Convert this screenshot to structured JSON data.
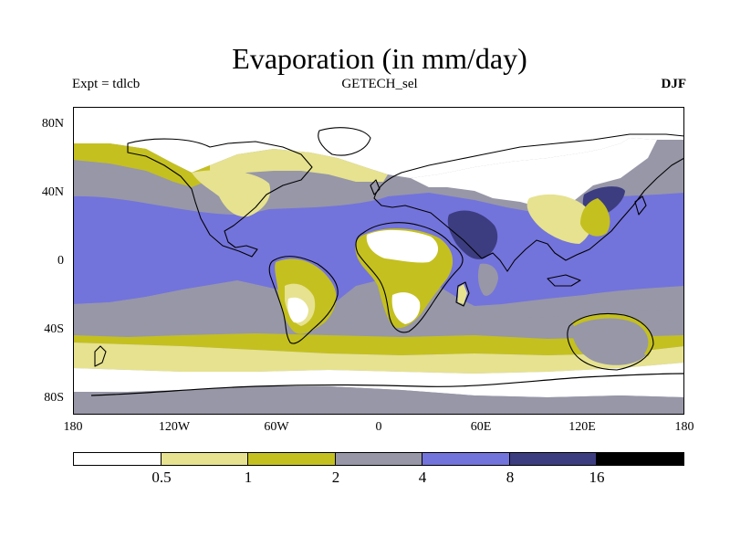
{
  "title": "Evaporation (in mm/day)",
  "left_subtitle": "Expt = tdlcb",
  "center_subtitle": "GETECH_sel",
  "right_subtitle": "DJF",
  "x_ticks": [
    "180",
    "120W",
    "60W",
    "0",
    "60E",
    "120E",
    "180"
  ],
  "y_ticks": [
    "80N",
    "40N",
    "0",
    "40S",
    "80S"
  ],
  "colorbar": {
    "colors": [
      "#ffffff",
      "#e6e28f",
      "#c4c01f",
      "#9797a8",
      "#7373dc",
      "#3c3d80",
      "#000000"
    ],
    "labels": [
      "0.5",
      "1",
      "2",
      "4",
      "8",
      "16"
    ]
  },
  "map": {
    "projection": "equirectangular",
    "lon_range": [
      -180,
      180
    ],
    "lat_range": [
      -90,
      90
    ],
    "variable": "evaporation",
    "units": "mm/day",
    "season": "DJF",
    "contour_levels": [
      0.5,
      1,
      2,
      4,
      8,
      16
    ]
  }
}
